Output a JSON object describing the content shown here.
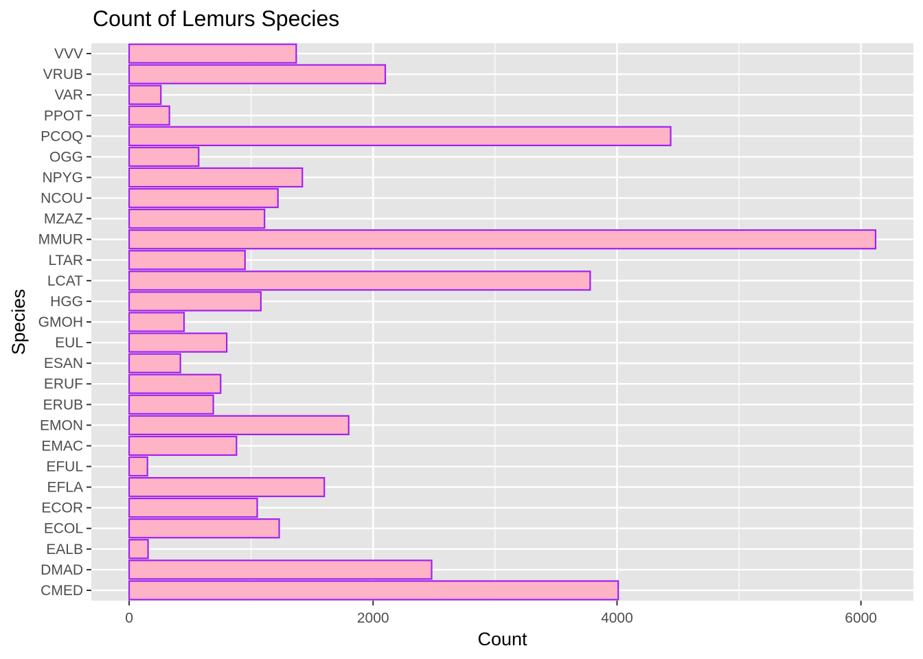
{
  "chart_data": {
    "type": "bar",
    "orientation": "horizontal",
    "title": "Count of Lemurs Species",
    "xlabel": "Count",
    "ylabel": "Species",
    "categories": [
      "CMED",
      "DMAD",
      "EALB",
      "ECOL",
      "ECOR",
      "EFLA",
      "EFUL",
      "EMAC",
      "EMON",
      "ERUB",
      "ERUF",
      "ESAN",
      "EUL",
      "GMOH",
      "HGG",
      "LCAT",
      "LTAR",
      "MMUR",
      "MZAZ",
      "NCOU",
      "NPYG",
      "OGG",
      "PCOQ",
      "PPOT",
      "VAR",
      "VRUB",
      "VVV"
    ],
    "values": [
      4010,
      2480,
      155,
      1230,
      1050,
      1600,
      150,
      880,
      1800,
      690,
      750,
      420,
      800,
      450,
      1080,
      3780,
      950,
      6120,
      1110,
      1220,
      1420,
      570,
      4440,
      330,
      260,
      2100,
      1370
    ],
    "xlim": [
      -310,
      6430
    ],
    "x_ticks": [
      0,
      2000,
      4000,
      6000
    ],
    "x_tick_labels": [
      "0",
      "2000",
      "4000",
      "6000"
    ],
    "bar_fill": "#ffb3c6",
    "bar_outline": "#a020f0",
    "panel_background": "#e5e5e5",
    "grid_color": "#ffffff",
    "grid": true,
    "legend": "none"
  }
}
